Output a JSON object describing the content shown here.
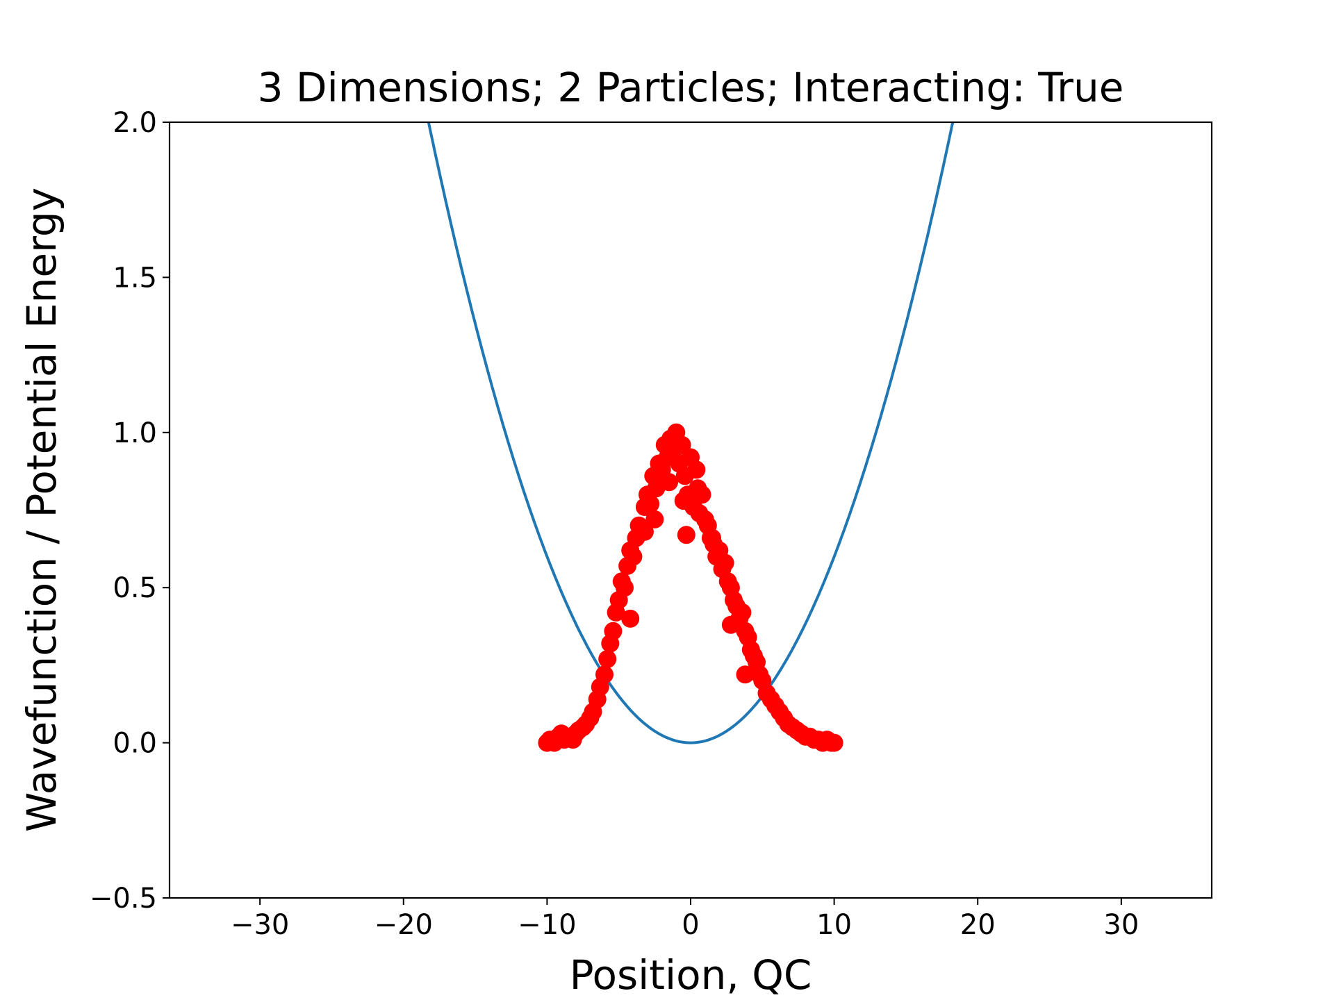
{
  "chart_data": {
    "type": "scatter",
    "title": "3 Dimensions; 2 Particles; Interacting: True",
    "xlabel": "Position, QC",
    "ylabel": "Wavefunction / Potential Energy",
    "xlim": [
      -36.3,
      36.3
    ],
    "ylim": [
      -0.5,
      2.0
    ],
    "xticks": [
      -30,
      -20,
      -10,
      0,
      10,
      20,
      30
    ],
    "xtick_labels": [
      "−30",
      "−20",
      "−10",
      "0",
      "10",
      "20",
      "30"
    ],
    "yticks": [
      -0.5,
      0.0,
      0.5,
      1.0,
      1.5,
      2.0
    ],
    "ytick_labels": [
      "−0.5",
      "0.0",
      "0.5",
      "1.0",
      "1.5",
      "2.0"
    ],
    "grid": false,
    "series": [
      {
        "kind": "line",
        "color": "#1f77b4",
        "expression": "0.006 * x^2",
        "x_range": [
          -36.3,
          36.3
        ]
      },
      {
        "kind": "scatter",
        "color": "#ff0000",
        "x": [
          -10.0,
          -9.8,
          -9.5,
          -9.2,
          -9.0,
          -8.8,
          -8.5,
          -8.2,
          -8.0,
          -7.8,
          -7.5,
          -7.3,
          -7.0,
          -6.8,
          -6.5,
          -6.3,
          -6.0,
          -5.8,
          -5.6,
          -5.4,
          -5.2,
          -5.0,
          -4.8,
          -4.6,
          -4.4,
          -4.2,
          -4.0,
          -3.8,
          -3.6,
          -3.4,
          -3.2,
          -3.0,
          -2.8,
          -2.6,
          -2.4,
          -2.2,
          -2.0,
          -1.8,
          -1.6,
          -1.4,
          -1.2,
          -1.0,
          -0.8,
          -0.6,
          -0.4,
          -0.2,
          0.0,
          0.2,
          0.4,
          0.6,
          0.8,
          1.0,
          1.2,
          1.4,
          1.6,
          1.8,
          2.0,
          2.2,
          2.4,
          2.6,
          2.8,
          3.0,
          3.2,
          3.4,
          3.6,
          3.8,
          4.0,
          4.2,
          4.4,
          4.6,
          4.8,
          5.0,
          5.3,
          5.6,
          5.9,
          6.2,
          6.5,
          6.8,
          7.1,
          7.4,
          7.7,
          8.0,
          8.3,
          8.6,
          8.9,
          9.2,
          9.5,
          9.8,
          10.0,
          -2.5,
          -1.5,
          -0.5,
          0.5,
          1.5,
          -3.2,
          2.8,
          -4.2,
          3.8,
          -0.3
        ],
        "y": [
          0.0,
          0.01,
          0.0,
          0.02,
          0.03,
          0.01,
          0.02,
          0.01,
          0.03,
          0.04,
          0.05,
          0.06,
          0.08,
          0.1,
          0.14,
          0.18,
          0.22,
          0.27,
          0.32,
          0.36,
          0.42,
          0.46,
          0.52,
          0.5,
          0.57,
          0.62,
          0.6,
          0.66,
          0.7,
          0.68,
          0.76,
          0.8,
          0.77,
          0.86,
          0.82,
          0.9,
          0.88,
          0.96,
          0.92,
          0.98,
          0.94,
          1.0,
          0.9,
          0.96,
          0.86,
          0.8,
          0.92,
          0.76,
          0.88,
          0.74,
          0.8,
          0.72,
          0.7,
          0.66,
          0.64,
          0.6,
          0.62,
          0.56,
          0.58,
          0.52,
          0.5,
          0.46,
          0.44,
          0.4,
          0.42,
          0.36,
          0.34,
          0.3,
          0.28,
          0.26,
          0.22,
          0.2,
          0.16,
          0.14,
          0.12,
          0.1,
          0.08,
          0.06,
          0.05,
          0.04,
          0.03,
          0.02,
          0.02,
          0.01,
          0.01,
          0.0,
          0.01,
          0.0,
          0.0,
          0.72,
          0.84,
          0.78,
          0.82,
          0.66,
          0.68,
          0.38,
          0.4,
          0.22,
          0.67
        ]
      }
    ]
  }
}
